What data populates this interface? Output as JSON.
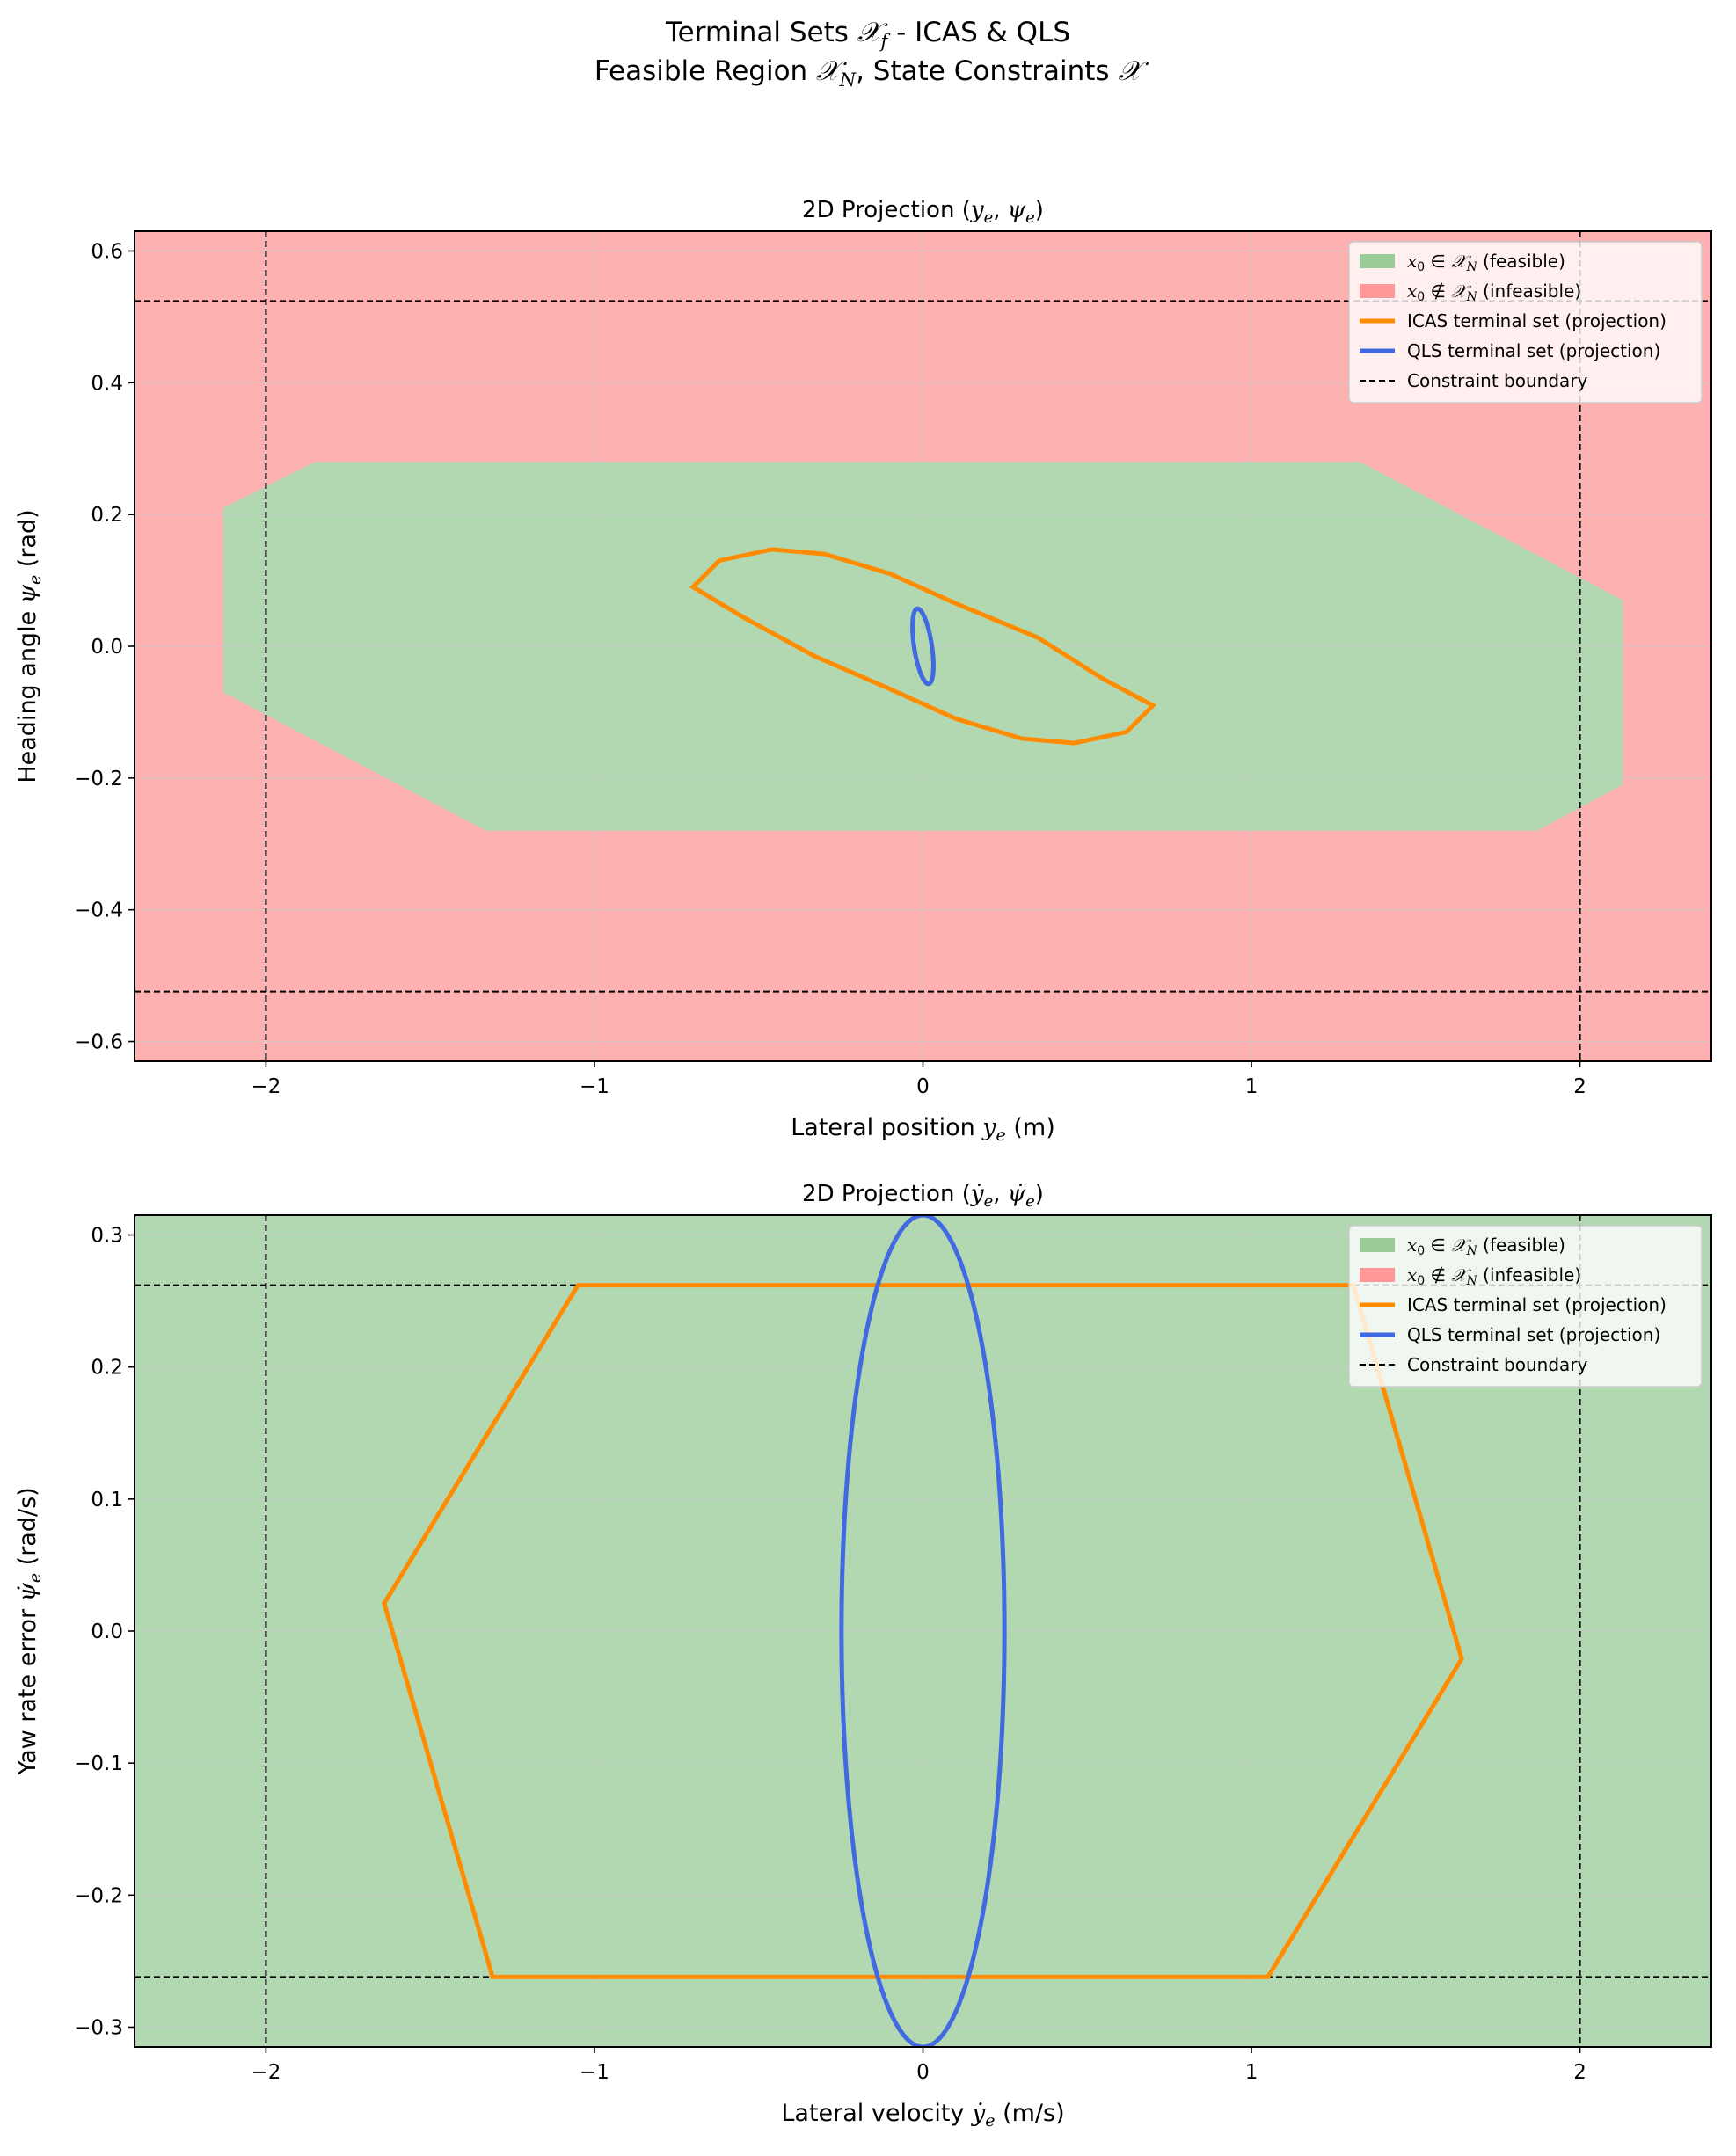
{
  "figure": {
    "title_line1": {
      "pre": "Terminal Sets ",
      "math": "𝒳",
      "sub": "f",
      "post": " - ICAS & QLS"
    },
    "title_line2": {
      "pre": "Feasible Region ",
      "math1": "𝒳",
      "sub1": "N",
      "mid": ", State Constraints ",
      "math2": "𝒳"
    }
  },
  "colors": {
    "feasible": "#b2d8b2",
    "infeasible": "#fdb1b1",
    "feasible_legend": "#99cc99",
    "infeasible_legend": "#ff9999",
    "icas": "#ff8c00",
    "qls": "#4169e1",
    "constraint": "#000000",
    "grid": "#cccccc"
  },
  "legend_labels": {
    "feasible": "(feasible)",
    "infeasible": "(infeasible)",
    "icas": "ICAS terminal set (projection)",
    "qls": "QLS terminal set (projection)",
    "constraint": "Constraint boundary"
  },
  "chart_data": [
    {
      "type": "area",
      "title": "2D Projection (y_e, ψ_e)",
      "xlabel": "Lateral position y_e (m)",
      "ylabel": "Heading angle ψ_e (rad)",
      "xlim": [
        -2.4,
        2.4
      ],
      "ylim": [
        -0.63,
        0.63
      ],
      "xticks": [
        -2,
        -1,
        0,
        1,
        2
      ],
      "yticks": [
        -0.6,
        -0.4,
        -0.2,
        0.0,
        0.2,
        0.4,
        0.6
      ],
      "xtick_labels": [
        "−2",
        "−1",
        "0",
        "1",
        "2"
      ],
      "ytick_labels": [
        "−0.6",
        "−0.4",
        "−0.2",
        "0.0",
        "0.2",
        "0.4",
        "0.6"
      ],
      "grid": true,
      "legend_position": "top-right",
      "background_region": "infeasible",
      "feasible_region": [
        [
          -2.13,
          0.21
        ],
        [
          -1.85,
          0.28
        ],
        [
          1.33,
          0.28
        ],
        [
          2.13,
          0.07
        ],
        [
          2.13,
          -0.21
        ],
        [
          1.87,
          -0.28
        ],
        [
          -1.33,
          -0.28
        ],
        [
          -2.13,
          -0.07
        ]
      ],
      "constraints": {
        "x": [
          -2,
          2
        ],
        "y": [
          -0.524,
          0.524
        ]
      },
      "icas": [
        [
          -0.7,
          0.09
        ],
        [
          -0.62,
          0.13
        ],
        [
          -0.46,
          0.147
        ],
        [
          -0.3,
          0.14
        ],
        [
          -0.1,
          0.11
        ],
        [
          0.1,
          0.065
        ],
        [
          0.35,
          0.013
        ],
        [
          0.55,
          -0.05
        ],
        [
          0.7,
          -0.09
        ],
        [
          0.62,
          -0.13
        ],
        [
          0.46,
          -0.147
        ],
        [
          0.3,
          -0.14
        ],
        [
          0.1,
          -0.11
        ],
        [
          -0.1,
          -0.065
        ],
        [
          -0.33,
          -0.015
        ],
        [
          -0.55,
          0.045
        ]
      ],
      "qls": {
        "cx": 0.0,
        "cy": 0.0,
        "a": 0.06,
        "b": 0.026,
        "angle": -70
      }
    },
    {
      "type": "area",
      "title": "2D Projection (ẏ_e, ψ̇_e)",
      "xlabel": "Lateral velocity ẏ_e (m/s)",
      "ylabel": "Yaw rate error ψ̇_e (rad/s)",
      "xlim": [
        -2.4,
        2.4
      ],
      "ylim": [
        -0.315,
        0.315
      ],
      "xticks": [
        -2,
        -1,
        0,
        1,
        2
      ],
      "yticks": [
        -0.3,
        -0.2,
        -0.1,
        0.0,
        0.1,
        0.2,
        0.3
      ],
      "xtick_labels": [
        "−2",
        "−1",
        "0",
        "1",
        "2"
      ],
      "ytick_labels": [
        "−0.3",
        "−0.2",
        "−0.1",
        "0.0",
        "0.1",
        "0.2",
        "0.3"
      ],
      "grid": true,
      "legend_position": "top-right",
      "background_region": "feasible",
      "feasible_region": [],
      "constraints": {
        "x": [
          -2,
          2
        ],
        "y": [
          -0.262,
          0.262
        ]
      },
      "icas": [
        [
          -1.05,
          0.262
        ],
        [
          1.31,
          0.262
        ],
        [
          1.64,
          -0.021
        ],
        [
          1.05,
          -0.262
        ],
        [
          -1.31,
          -0.262
        ],
        [
          -1.64,
          0.021
        ]
      ],
      "qls": {
        "cx": 0.0,
        "cy": 0.0,
        "a": 0.248,
        "b": 0.315,
        "angle": 0
      }
    }
  ]
}
